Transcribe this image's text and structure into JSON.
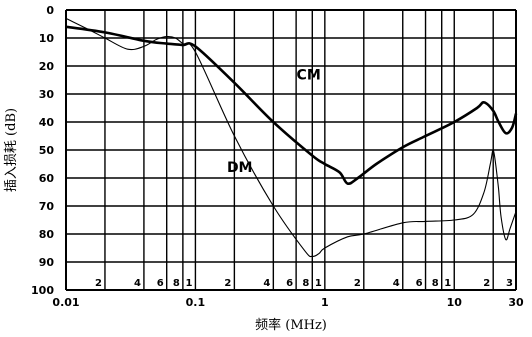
{
  "chart_data": {
    "type": "line",
    "xlabel": "频率 (MHz)",
    "ylabel": "插入损耗 (dB)",
    "x_scale": "log",
    "xlim": [
      0.01,
      30
    ],
    "ylim": [
      0,
      100
    ],
    "y_inverted": true,
    "grid": true,
    "x_major_ticks": [
      "0.01",
      "0.1",
      "1",
      "10",
      "30"
    ],
    "x_minor_ticks": [
      {
        "label": "2",
        "value": 0.02
      },
      {
        "label": "4",
        "value": 0.04
      },
      {
        "label": "6",
        "value": 0.06
      },
      {
        "label": "8",
        "value": 0.08
      },
      {
        "label": "1",
        "value": 0.1
      },
      {
        "label": "2",
        "value": 0.2
      },
      {
        "label": "4",
        "value": 0.4
      },
      {
        "label": "6",
        "value": 0.6
      },
      {
        "label": "8",
        "value": 0.8
      },
      {
        "label": "1",
        "value": 1
      },
      {
        "label": "2",
        "value": 2
      },
      {
        "label": "4",
        "value": 4
      },
      {
        "label": "6",
        "value": 6
      },
      {
        "label": "8",
        "value": 8
      },
      {
        "label": "1",
        "value": 10
      },
      {
        "label": "2",
        "value": 20
      },
      {
        "label": "3",
        "value": 30
      }
    ],
    "y_ticks": [
      "0",
      "10",
      "20",
      "30",
      "40",
      "50",
      "60",
      "70",
      "80",
      "90",
      "100"
    ],
    "series": [
      {
        "name": "CM",
        "x": [
          0.01,
          0.02,
          0.04,
          0.06,
          0.08,
          0.1,
          0.2,
          0.4,
          0.8,
          1.0,
          1.3,
          1.5,
          1.8,
          2.5,
          4,
          6,
          10,
          15,
          17,
          20,
          22,
          25,
          28,
          30
        ],
        "y": [
          6,
          8,
          11,
          12,
          12.5,
          13,
          26,
          40,
          52,
          55,
          58,
          62,
          60,
          55,
          49,
          45,
          40,
          35,
          33,
          36,
          40,
          44,
          42,
          37
        ]
      },
      {
        "name": "DM",
        "x": [
          0.01,
          0.015,
          0.02,
          0.03,
          0.04,
          0.05,
          0.06,
          0.07,
          0.08,
          0.1,
          0.2,
          0.4,
          0.7,
          0.8,
          0.9,
          1.0,
          1.5,
          2,
          4,
          6,
          10,
          14,
          17,
          19,
          20,
          21,
          22,
          23,
          25,
          27,
          30
        ],
        "y": [
          3,
          7,
          10,
          14,
          13,
          10.5,
          9.5,
          10,
          12,
          15,
          45,
          70,
          86,
          88,
          87,
          85,
          81,
          80,
          76,
          75.5,
          75,
          73,
          65,
          55,
          50,
          56,
          64,
          74,
          82,
          78,
          72
        ]
      }
    ]
  }
}
